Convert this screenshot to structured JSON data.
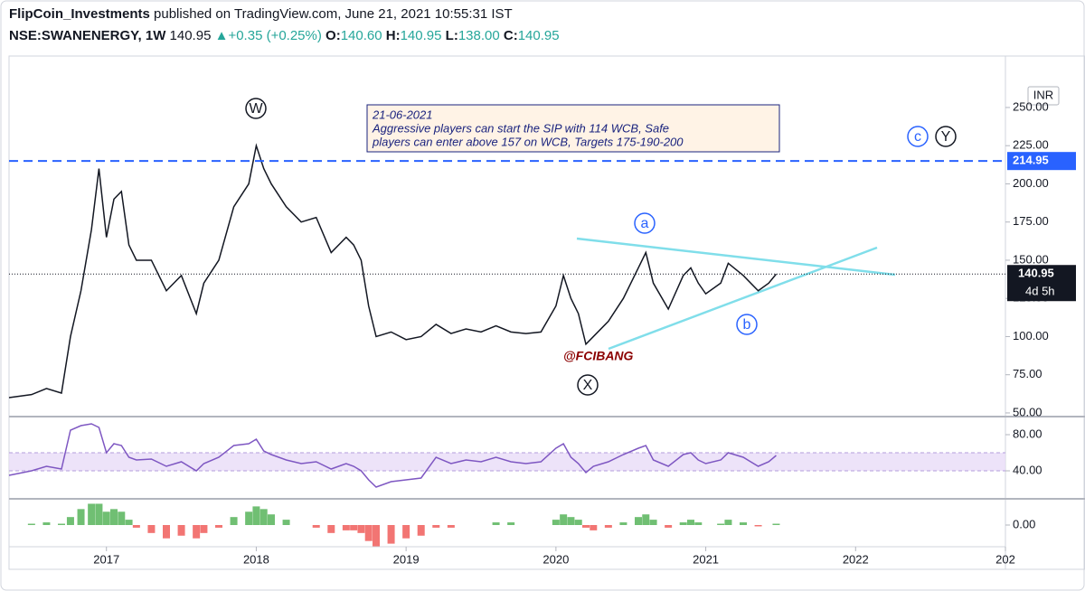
{
  "header": {
    "author": "FlipCoin_Investments",
    "published": "published on TradingView.com, June 21, 2021 10:55:31 IST",
    "symbol": "NSE:SWANENERGY, 1W",
    "last": "140.95",
    "change": "+0.35 (+0.25%)",
    "ohlc": [
      {
        "key": "O:",
        "value": "140.60"
      },
      {
        "key": "H:",
        "value": "140.95"
      },
      {
        "key": "L:",
        "value": "138.00"
      },
      {
        "key": "C:",
        "value": "140.95"
      }
    ]
  },
  "chart_data": [
    {
      "type": "line",
      "x": [
        2016.35,
        2016.5,
        2016.6,
        2016.7,
        2016.76,
        2016.83,
        2016.9,
        2016.95,
        2017.0,
        2017.05,
        2017.1,
        2017.15,
        2017.2,
        2017.3,
        2017.4,
        2017.5,
        2017.6,
        2017.65,
        2017.75,
        2017.85,
        2017.95,
        2018.0,
        2018.05,
        2018.1,
        2018.2,
        2018.3,
        2018.4,
        2018.5,
        2018.6,
        2018.65,
        2018.7,
        2018.75,
        2018.8,
        2018.9,
        2019.0,
        2019.1,
        2019.2,
        2019.3,
        2019.4,
        2019.5,
        2019.6,
        2019.7,
        2019.8,
        2019.9,
        2020.0,
        2020.05,
        2020.1,
        2020.15,
        2020.2,
        2020.25,
        2020.35,
        2020.45,
        2020.55,
        2020.6,
        2020.65,
        2020.75,
        2020.85,
        2020.9,
        2020.95,
        2021.0,
        2021.1,
        2021.15,
        2021.25,
        2021.35,
        2021.42,
        2021.47
      ],
      "series": [
        {
          "color": "#131722",
          "values": [
            60,
            62,
            66,
            63,
            100,
            130,
            170,
            210,
            165,
            190,
            195,
            160,
            150,
            150,
            130,
            140,
            115,
            135,
            150,
            185,
            200,
            225,
            210,
            200,
            185,
            175,
            178,
            155,
            165,
            160,
            150,
            120,
            100,
            103,
            98,
            100,
            108,
            102,
            105,
            103,
            107,
            103,
            102,
            103,
            120,
            140,
            125,
            115,
            95,
            100,
            110,
            125,
            145,
            155,
            135,
            118,
            140,
            145,
            135,
            128,
            135,
            148,
            140,
            130,
            135,
            140.95
          ]
        }
      ],
      "xlim": [
        2016.35,
        2023.0
      ],
      "xticks": [
        2017,
        2018,
        2019,
        2020,
        2021,
        2022,
        {
          "value": 2023,
          "label": "202"
        }
      ],
      "ylim": [
        47.6,
        283.7
      ],
      "yticks": [
        {
          "value": 50,
          "label": "50.00"
        },
        {
          "value": 75,
          "label": "75.00"
        },
        {
          "value": 100,
          "label": "100.00"
        },
        {
          "value": 125,
          "label": "125.00"
        },
        {
          "value": 150,
          "label": "150.00"
        },
        {
          "value": 175,
          "label": "175.00"
        },
        {
          "value": 200,
          "label": "200.00"
        },
        {
          "value": 225,
          "label": "225.00"
        },
        {
          "value": 250,
          "label": "250.00"
        }
      ],
      "currency": "INR",
      "hline": {
        "value": 214.95,
        "color": "#2962ff"
      },
      "last_value": 140.95,
      "countdown": "4d 5h",
      "waves": [
        "W",
        "X",
        "Y",
        "c",
        "a",
        "b"
      ],
      "note": [
        "21-06-2021",
        "Aggressive players can start the SIP with 114 WCB, Safe",
        "players can enter above 157 on WCB, Targets 175-190-200"
      ],
      "watermark": "@FCIBANG"
    },
    {
      "type": "line",
      "series": [
        {
          "color": "#7e57c2",
          "values": [
            35,
            40,
            45,
            42,
            85,
            90,
            92,
            88,
            60,
            70,
            68,
            55,
            52,
            53,
            45,
            50,
            40,
            48,
            55,
            68,
            70,
            75,
            62,
            58,
            52,
            48,
            50,
            42,
            48,
            45,
            40,
            30,
            22,
            28,
            30,
            32,
            55,
            48,
            52,
            50,
            55,
            50,
            48,
            50,
            65,
            70,
            55,
            48,
            38,
            45,
            50,
            58,
            65,
            68,
            52,
            45,
            58,
            60,
            52,
            48,
            52,
            60,
            55,
            45,
            50,
            57
          ]
        }
      ],
      "ylim": [
        11,
        98
      ],
      "yticks": [
        {
          "value": 40,
          "label": "40.00"
        },
        {
          "value": 80,
          "label": "80.00"
        }
      ]
    },
    {
      "type": "bar",
      "up_color": "#4caf50",
      "down_color": "#ef5350",
      "values": [
        0,
        0.5,
        1,
        0.5,
        3,
        6,
        8,
        8,
        5,
        6,
        5,
        2,
        -1,
        -3,
        -5,
        -4,
        -5,
        -3,
        -1,
        3,
        5,
        7,
        6,
        4,
        2,
        0,
        -1,
        -3,
        -2,
        -2,
        -3,
        -6,
        -8,
        -7,
        -5,
        -4,
        -1,
        -1,
        0,
        0,
        1,
        1,
        0,
        0,
        2,
        4,
        3,
        2,
        -1,
        -2,
        -1,
        1,
        3,
        4,
        2,
        -1,
        1,
        2,
        1,
        0,
        0.5,
        2,
        1,
        -0.5,
        0,
        0.5
      ],
      "ylim": [
        -8.15,
        9.85
      ],
      "yticks": [
        {
          "value": 0,
          "label": "0.00"
        }
      ]
    }
  ]
}
